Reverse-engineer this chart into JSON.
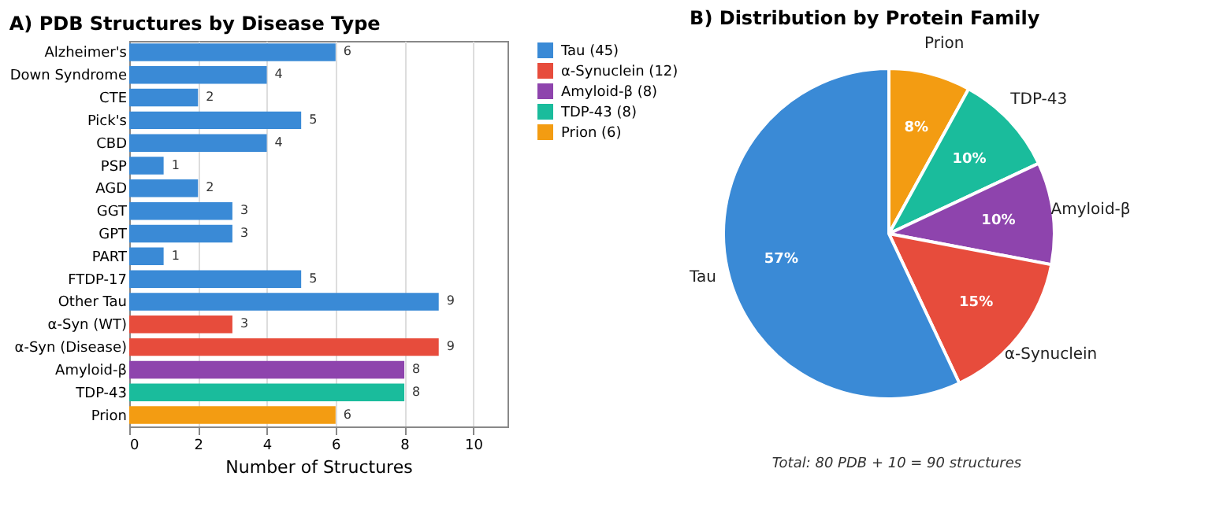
{
  "chart_data": [
    {
      "type": "bar",
      "orientation": "horizontal",
      "title": "A) PDB Structures by Disease Type",
      "xlabel": "Number of Structures",
      "categories": [
        "Alzheimer's",
        "Down Syndrome",
        "CTE",
        "Pick's",
        "CBD",
        "PSP",
        "AGD",
        "GGT",
        "GPT",
        "PART",
        "FTDP-17",
        "Other Tau",
        "α-Syn (WT)",
        "α-Syn (Disease)",
        "Amyloid-β",
        "TDP-43",
        "Prion"
      ],
      "series": [
        {
          "name": "Tau (45)",
          "color": "#3a8ad6",
          "values": [
            6,
            4,
            2,
            5,
            4,
            1,
            2,
            3,
            3,
            1,
            5,
            9,
            null,
            null,
            null,
            null,
            null
          ]
        },
        {
          "name": "α-Synuclein (12)",
          "color": "#e74c3c",
          "values": [
            null,
            null,
            null,
            null,
            null,
            null,
            null,
            null,
            null,
            null,
            null,
            null,
            3,
            9,
            null,
            null,
            null
          ]
        },
        {
          "name": "Amyloid-β (8)",
          "color": "#8e44ad",
          "values": [
            null,
            null,
            null,
            null,
            null,
            null,
            null,
            null,
            null,
            null,
            null,
            null,
            null,
            null,
            8,
            null,
            null
          ]
        },
        {
          "name": "TDP-43 (8)",
          "color": "#1abc9c",
          "values": [
            null,
            null,
            null,
            null,
            null,
            null,
            null,
            null,
            null,
            null,
            null,
            null,
            null,
            null,
            null,
            8,
            null
          ]
        },
        {
          "name": "Prion (6)",
          "color": "#f39c12",
          "values": [
            null,
            null,
            null,
            null,
            null,
            null,
            null,
            null,
            null,
            null,
            null,
            null,
            null,
            null,
            null,
            null,
            6
          ]
        }
      ],
      "xlim": [
        0,
        11
      ],
      "xticks": [
        0,
        2,
        4,
        6,
        8,
        10
      ],
      "grid": "x",
      "data_labels": true,
      "legend": "right"
    },
    {
      "type": "pie",
      "title": "B) Distribution by Protein Family",
      "categories": [
        "Prion",
        "TDP-43",
        "Amyloid-β",
        "α-Synuclein",
        "Tau"
      ],
      "values": [
        8,
        10,
        10,
        15,
        57
      ],
      "value_labels": [
        "8%",
        "10%",
        "10%",
        "15%",
        "57%"
      ],
      "colors": [
        "#f39c12",
        "#1abc9c",
        "#8e44ad",
        "#e74c3c",
        "#3a8ad6"
      ],
      "annotations": [
        "Total: 80 PDB + 10 = 90 structures"
      ]
    }
  ]
}
